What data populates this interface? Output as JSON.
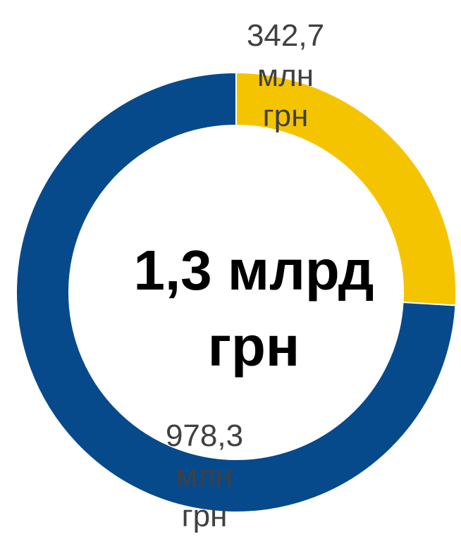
{
  "chart_data": {
    "type": "donut",
    "center_label": "1,3 млрд грн",
    "values": [
      342.7,
      978.3
    ],
    "value_labels": [
      "342,7 млн грн",
      "978,3 млн грн"
    ],
    "colors": [
      "#f5c400",
      "#064a8c"
    ]
  }
}
